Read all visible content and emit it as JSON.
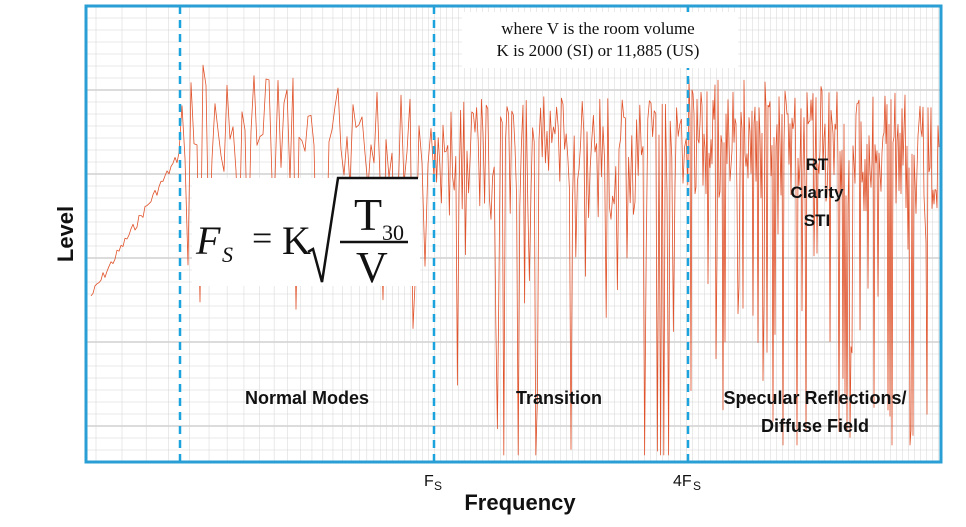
{
  "axes": {
    "y_label": "Level",
    "x_label": "Frequency",
    "x_ticks": [
      {
        "main": "F",
        "sub": "S"
      },
      {
        "main": "4F",
        "sub": "S"
      }
    ]
  },
  "note": {
    "line1": "where V is the room volume",
    "line2": "K is 2000 (SI) or 11,885 (US)"
  },
  "formula": {
    "lhs_main": "F",
    "lhs_sub": "S",
    "equals": "=",
    "constant": "K",
    "numerator_main": "T",
    "numerator_sub": "30",
    "denominator": "V"
  },
  "regions": {
    "normal_modes": "Normal Modes",
    "transition": "Transition",
    "specular_line1": "Specular Reflections/",
    "specular_line2": "Diffuse Field"
  },
  "metrics": {
    "line1": "RT",
    "line2": "Clarity",
    "line3": "STI"
  },
  "colors": {
    "frame": "#2a9fd6",
    "divider": "#1aa3dc",
    "curve": "#e0522a",
    "grid": "#d4d4d4",
    "grid_major": "#b8b8b8"
  }
}
